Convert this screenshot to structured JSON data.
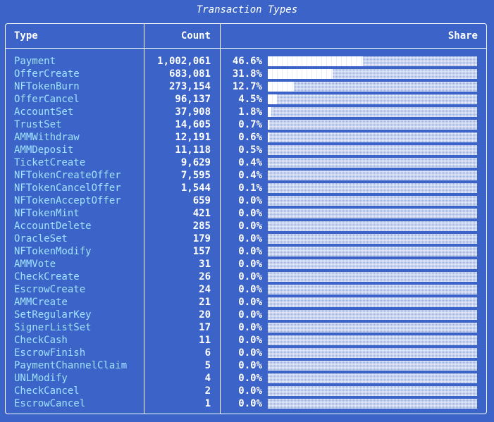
{
  "title": "Transaction Types",
  "headers": {
    "type": "Type",
    "count": "Count",
    "share": "Share"
  },
  "colors": {
    "background": "#3c64c8",
    "type_text": "#9fe3ff",
    "bar_fill": "#ffffff",
    "bar_track": "#9db1e3"
  },
  "rows": [
    {
      "type": "Payment",
      "count": "1,002,061",
      "share": "46.6%",
      "share_value": 46.6
    },
    {
      "type": "OfferCreate",
      "count": "683,081",
      "share": "31.8%",
      "share_value": 31.8
    },
    {
      "type": "NFTokenBurn",
      "count": "273,154",
      "share": "12.7%",
      "share_value": 12.7
    },
    {
      "type": "OfferCancel",
      "count": "96,137",
      "share": "4.5%",
      "share_value": 4.5
    },
    {
      "type": "AccountSet",
      "count": "37,908",
      "share": "1.8%",
      "share_value": 1.8
    },
    {
      "type": "TrustSet",
      "count": "14,605",
      "share": "0.7%",
      "share_value": 0.7
    },
    {
      "type": "AMMWithdraw",
      "count": "12,191",
      "share": "0.6%",
      "share_value": 0.6
    },
    {
      "type": "AMMDeposit",
      "count": "11,118",
      "share": "0.5%",
      "share_value": 0.5
    },
    {
      "type": "TicketCreate",
      "count": "9,629",
      "share": "0.4%",
      "share_value": 0.4
    },
    {
      "type": "NFTokenCreateOffer",
      "count": "7,595",
      "share": "0.4%",
      "share_value": 0.4
    },
    {
      "type": "NFTokenCancelOffer",
      "count": "1,544",
      "share": "0.1%",
      "share_value": 0.1
    },
    {
      "type": "NFTokenAcceptOffer",
      "count": "659",
      "share": "0.0%",
      "share_value": 0.0
    },
    {
      "type": "NFTokenMint",
      "count": "421",
      "share": "0.0%",
      "share_value": 0.0
    },
    {
      "type": "AccountDelete",
      "count": "285",
      "share": "0.0%",
      "share_value": 0.0
    },
    {
      "type": "OracleSet",
      "count": "179",
      "share": "0.0%",
      "share_value": 0.0
    },
    {
      "type": "NFTokenModify",
      "count": "157",
      "share": "0.0%",
      "share_value": 0.0
    },
    {
      "type": "AMMVote",
      "count": "31",
      "share": "0.0%",
      "share_value": 0.0
    },
    {
      "type": "CheckCreate",
      "count": "26",
      "share": "0.0%",
      "share_value": 0.0
    },
    {
      "type": "EscrowCreate",
      "count": "24",
      "share": "0.0%",
      "share_value": 0.0
    },
    {
      "type": "AMMCreate",
      "count": "21",
      "share": "0.0%",
      "share_value": 0.0
    },
    {
      "type": "SetRegularKey",
      "count": "20",
      "share": "0.0%",
      "share_value": 0.0
    },
    {
      "type": "SignerListSet",
      "count": "17",
      "share": "0.0%",
      "share_value": 0.0
    },
    {
      "type": "CheckCash",
      "count": "11",
      "share": "0.0%",
      "share_value": 0.0
    },
    {
      "type": "EscrowFinish",
      "count": "6",
      "share": "0.0%",
      "share_value": 0.0
    },
    {
      "type": "PaymentChannelClaim",
      "count": "5",
      "share": "0.0%",
      "share_value": 0.0
    },
    {
      "type": "UNLModify",
      "count": "4",
      "share": "0.0%",
      "share_value": 0.0
    },
    {
      "type": "CheckCancel",
      "count": "2",
      "share": "0.0%",
      "share_value": 0.0
    },
    {
      "type": "EscrowCancel",
      "count": "1",
      "share": "0.0%",
      "share_value": 0.0
    }
  ]
}
